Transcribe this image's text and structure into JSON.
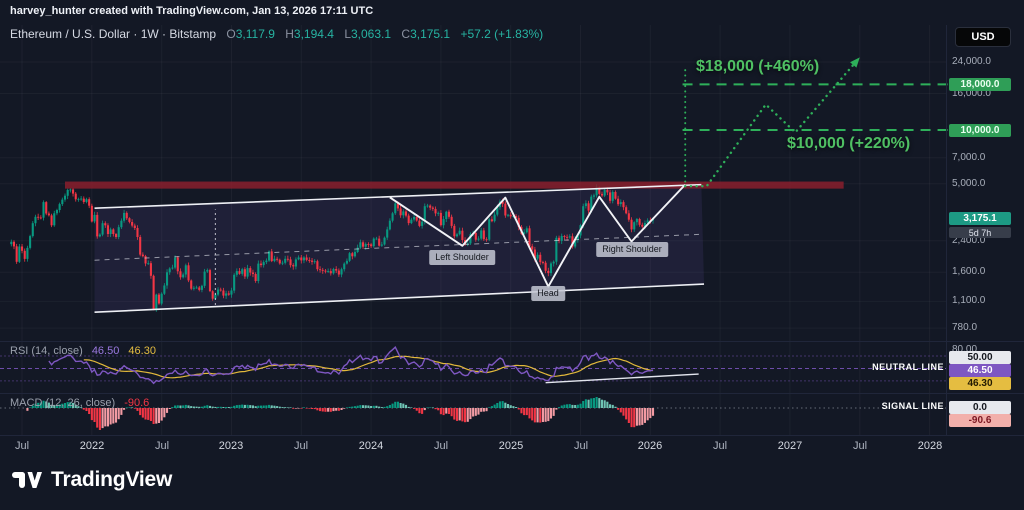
{
  "header": {
    "attribution": "harvey_hunter created with TradingView.com, Jan 13, 2026 17:11 UTC",
    "currency_button": "USD"
  },
  "legend": {
    "symbol": "Ethereum / U.S. Dollar · 1W · Bitstamp",
    "open_label": "O",
    "open": "3,117.9",
    "high_label": "H",
    "high": "3,194.4",
    "low_label": "L",
    "low": "3,063.1",
    "close_label": "C",
    "close": "3,175.1",
    "change": "+57.2 (+1.83%)"
  },
  "annotations": {
    "neutral_line": "NEUTRAL LINE",
    "signal_line": "SIGNAL LINE"
  },
  "price_axis": {
    "ticks": [
      {
        "label": "24,000.0",
        "price": 24000
      },
      {
        "label": "16,000.0",
        "price": 16000
      },
      {
        "label": "7,000.0",
        "price": 7000
      },
      {
        "label": "5,000.0",
        "price": 5000
      },
      {
        "label": "2,400.0",
        "price": 2400
      },
      {
        "label": "1,600.0",
        "price": 1600
      },
      {
        "label": "1,100.0",
        "price": 1100
      },
      {
        "label": "780.0",
        "price": 780
      }
    ],
    "target_upper_badge": "18,000.0",
    "target_lower_badge": "10,000.0",
    "last_price_badge": "3,175.1",
    "countdown": "5d 7h"
  },
  "rsi": {
    "legend": "RSI (14, close)",
    "value": "46.50",
    "ma_value": "46.30",
    "tick_80": "80.00",
    "badge_50": "50.00"
  },
  "macd": {
    "legend": "MACD (12, 26, close)",
    "value": "-90.6",
    "badge_zero": "0.0",
    "badge_value": "-90.6"
  },
  "time_axis": {
    "labels": [
      {
        "label": "Jul",
        "week": 4,
        "year": false
      },
      {
        "label": "2022",
        "week": 30,
        "year": true
      },
      {
        "label": "Jul",
        "week": 56,
        "year": false
      },
      {
        "label": "2023",
        "week": 82,
        "year": true
      },
      {
        "label": "Jul",
        "week": 108,
        "year": false
      },
      {
        "label": "2024",
        "week": 134,
        "year": true
      },
      {
        "label": "Jul",
        "week": 160,
        "year": false
      },
      {
        "label": "2025",
        "week": 186,
        "year": true
      },
      {
        "label": "Jul",
        "week": 212,
        "year": false
      },
      {
        "label": "2026",
        "week": 238,
        "year": true
      },
      {
        "label": "Jul",
        "week": 264,
        "year": false
      },
      {
        "label": "2027",
        "week": 290,
        "year": true
      },
      {
        "label": "Jul",
        "week": 316,
        "year": false
      },
      {
        "label": "2028",
        "week": 342,
        "year": true
      }
    ]
  },
  "footer": {
    "brand": "TradingView"
  },
  "colors": {
    "up": "#089981",
    "down": "#f23645",
    "target_green": "#2eb05a",
    "annotation_green": "#4fc063",
    "resistance_red": "#8e1f2d",
    "channel_fill": "rgba(138,108,226,0.10)",
    "channel_line": "#eef0f5",
    "rsi_purple": "#7e57c2",
    "rsi_ma_yellow": "#e2b93b",
    "macd_pos": "#089981",
    "macd_pos_light": "#6fc5b5",
    "macd_neg": "#f23645",
    "macd_neg_light": "#f39ba3",
    "last_price_badge": "#1d9a84"
  },
  "chart_data": {
    "type": "candlestick+indicators",
    "symbol": "ETHUSD",
    "exchange": "Bitstamp",
    "timeframe": "1W",
    "scale": "log",
    "start_week_label": "Jun 2021",
    "last": {
      "open": 3117.9,
      "high": 3194.4,
      "low": 3063.1,
      "close": 3175.1,
      "change": 57.2,
      "change_pct": 1.83
    },
    "indicators": {
      "rsi": {
        "period": 14,
        "source": "close",
        "value": 46.5,
        "ma_value": 46.3
      },
      "macd": {
        "fast": 12,
        "slow": 26,
        "source": "close",
        "histogram_value": -90.6
      }
    },
    "weekly_closes": [
      2370,
      2235,
      1830,
      2230,
      2110,
      1900,
      2190,
      2550,
      3010,
      3270,
      3240,
      3230,
      3950,
      3410,
      3330,
      2930,
      3420,
      3570,
      3850,
      4080,
      4290,
      4620,
      4650,
      4410,
      4100,
      4120,
      4135,
      3960,
      4100,
      3770,
      3080,
      3350,
      2540,
      2600,
      3010,
      2930,
      2620,
      2780,
      2620,
      2520,
      2860,
      3110,
      3440,
      3210,
      3060,
      2920,
      2830,
      2520,
      2010,
      1970,
      1790,
      1800,
      1530,
      995,
      1200,
      1070,
      1215,
      1350,
      1600,
      1680,
      1700,
      1935,
      1620,
      1500,
      1555,
      1750,
      1440,
      1295,
      1310,
      1315,
      1275,
      1345,
      1615,
      1645,
      1255,
      1140,
      1200,
      1280,
      1265,
      1185,
      1220,
      1200,
      1265,
      1550,
      1625,
      1570,
      1665,
      1515,
      1690,
      1595,
      1565,
      1430,
      1790,
      1755,
      1825,
      1860,
      2095,
      1850,
      1905,
      1880,
      1795,
      1810,
      1905,
      1890,
      1755,
      1725,
      1890,
      1935,
      1865,
      1935,
      1875,
      1860,
      1830,
      1845,
      1665,
      1650,
      1635,
      1615,
      1625,
      1580,
      1670,
      1635,
      1555,
      1665,
      1790,
      1855,
      2045,
      1965,
      2080,
      2200,
      2355,
      2225,
      2305,
      2295,
      2240,
      2470,
      2470,
      2255,
      2290,
      2500,
      2780,
      3110,
      3420,
      3885,
      3645,
      3335,
      3505,
      3320,
      3015,
      3155,
      3260,
      3115,
      2910,
      3070,
      3750,
      3780,
      3680,
      3620,
      3415,
      3440,
      2935,
      3175,
      3490,
      3270,
      2910,
      2545,
      2610,
      2735,
      2425,
      2295,
      2320,
      2610,
      2655,
      2435,
      2470,
      2745,
      2450,
      2435,
      3165,
      3090,
      3365,
      3705,
      3985,
      3870,
      3325,
      3355,
      3285,
      3305,
      3225,
      2870,
      2625,
      2680,
      2820,
      2235,
      2145,
      1910,
      2005,
      1825,
      1810,
      1630,
      1585,
      1795,
      1835,
      2495,
      2400,
      2555,
      2525,
      2510,
      2545,
      2230,
      2440,
      2570,
      2940,
      3750,
      3890,
      3540,
      4240,
      4310,
      4780,
      4390,
      4300,
      4620,
      4480,
      4020,
      4500,
      4130,
      3850,
      3950,
      3700,
      3420,
      3150,
      2780,
      3050,
      3180,
      2950,
      2880,
      3020,
      3120,
      3118,
      3175
    ],
    "overlays": {
      "channel": {
        "upper": [
          [
            31,
            3655
          ],
          [
            257,
            4950
          ]
        ],
        "lower": [
          [
            31,
            957
          ],
          [
            258,
            1375
          ]
        ],
        "mid": [
          [
            31,
            1870
          ],
          [
            257,
            2610
          ]
        ]
      },
      "resistance_zone": {
        "from_week": 20,
        "to_week": 310,
        "top_price": 5150,
        "bottom_price": 4700
      },
      "head_shoulders_path": [
        [
          141,
          4200
        ],
        [
          168,
          2250
        ],
        [
          184,
          4190
        ],
        [
          200,
          1330
        ],
        [
          219,
          4230
        ],
        [
          231,
          2380
        ],
        [
          251,
          4950
        ]
      ],
      "vertical_marker": {
        "week": 76,
        "from_price": 1050,
        "to_price": 3600
      },
      "target_lines": [
        {
          "price": 18000,
          "from_week": 250,
          "to_week": 349
        },
        {
          "price": 10000,
          "from_week": 250,
          "to_week": 349
        }
      ],
      "projection_path": [
        [
          251,
          4850
        ],
        [
          259,
          4850
        ],
        [
          281,
          13900
        ],
        [
          292,
          9700
        ],
        [
          316,
          25500
        ]
      ],
      "projection_vertical": {
        "week": 251,
        "from_price": 5150,
        "to_price": 23000
      },
      "rsi_trendline": [
        [
          199,
          27
        ],
        [
          256,
          41
        ]
      ],
      "pattern_labels": [
        {
          "text": "Left Shoulder",
          "week": 168,
          "price": 1950
        },
        {
          "text": "Head",
          "week": 200,
          "price": 1220
        },
        {
          "text": "Right Shoulder",
          "week": 231,
          "price": 2160
        }
      ],
      "target_labels": [
        {
          "text": "$18,000 (+460%)",
          "week": 255,
          "price": 21500
        },
        {
          "text": "$10,000 (+220%)",
          "week": 289,
          "price": 7935
        }
      ]
    }
  }
}
